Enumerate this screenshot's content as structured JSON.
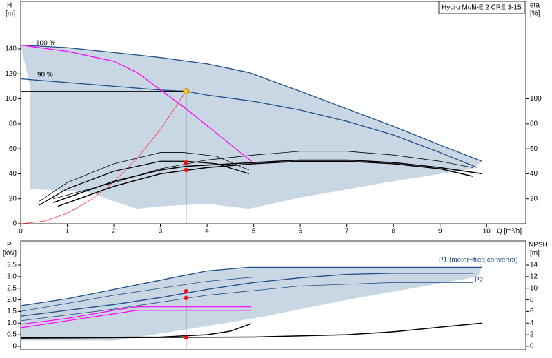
{
  "chart_data": [
    {
      "type": "line",
      "title": "Hydro Multi-E 2 CRE 3-15",
      "y_label": "H",
      "y_unit": "[m]",
      "y2_label": "eta",
      "y2_unit": "[%]",
      "x_label": "Q [m³/h]",
      "annotations": [
        "100 %",
        "90 %"
      ],
      "xlim": [
        0,
        10.84
      ],
      "xticks": [
        0,
        1,
        2,
        3,
        4,
        5,
        6,
        7,
        8,
        9,
        10
      ],
      "ylim": [
        0,
        178
      ],
      "yticks": [
        0,
        20,
        40,
        60,
        80,
        100,
        120,
        140
      ],
      "y2lim": [
        0,
        178
      ],
      "y2ticks": [
        20,
        40,
        60,
        80,
        100
      ],
      "regions": [
        {
          "color": "#c8d7e3",
          "x": [
            0,
            1,
            2,
            3,
            4,
            4.9,
            6,
            7,
            8,
            9,
            9.9,
            9.7,
            8,
            6,
            4.9,
            4,
            3,
            2.5,
            2,
            1.5,
            0.2,
            0.2,
            0
          ],
          "values": [
            143,
            141,
            137,
            133,
            128,
            121,
            106,
            92,
            78,
            63,
            50,
            44,
            34,
            21,
            12,
            16,
            14,
            12,
            18,
            25,
            28,
            110,
            143
          ]
        }
      ],
      "series": [
        {
          "color": "#1f4e89",
          "width": 1.3,
          "x": [
            0,
            1,
            2,
            3,
            4,
            4.9,
            6,
            7,
            8,
            9,
            9.9
          ],
          "values": [
            143,
            141,
            137,
            133,
            128,
            121,
            106,
            92,
            78,
            63,
            50
          ]
        },
        {
          "color": "#1f4e89",
          "width": 1.3,
          "x": [
            0,
            1,
            2,
            3,
            3.55,
            4,
            5,
            6,
            7,
            8,
            9,
            9.8
          ],
          "values": [
            116,
            113,
            110,
            107,
            106,
            103,
            98,
            91,
            82,
            71,
            57,
            45
          ]
        },
        {
          "color": "#000000",
          "width": 1,
          "x": [
            0,
            3.55
          ],
          "values": [
            106,
            106
          ]
        },
        {
          "color": "#ff00ff",
          "width": 1.3,
          "x": [
            0,
            1,
            2,
            2.5,
            3.55,
            4.95
          ],
          "values": [
            143,
            138,
            130,
            121,
            92,
            50
          ]
        },
        {
          "color": "#ff3030",
          "width": 0.8,
          "x": [
            0,
            0.5,
            1,
            1.5,
            2,
            2.5,
            3,
            3.55
          ],
          "values": [
            0,
            2,
            8.4,
            19,
            33.6,
            52.5,
            75.6,
            106
          ]
        },
        {
          "color": "#555555",
          "width": 1,
          "x": [
            3.55,
            3.55
          ],
          "values": [
            0,
            106
          ]
        },
        {
          "color": "#000000",
          "width": 0.8,
          "axis": "y2",
          "x": [
            0.4,
            1,
            2,
            3,
            3.5,
            4.2,
            4.9
          ],
          "values": [
            18,
            33,
            48,
            57,
            57,
            54,
            43
          ]
        },
        {
          "color": "#000000",
          "width": 1.3,
          "axis": "y2",
          "x": [
            0.4,
            1,
            2,
            3,
            3.55,
            4.2,
            4.9
          ],
          "values": [
            15,
            28,
            42,
            50,
            50,
            48,
            40
          ]
        },
        {
          "color": "#000000",
          "width": 0.8,
          "axis": "y2",
          "x": [
            0.7,
            2,
            3,
            4,
            5,
            6,
            7,
            8,
            9,
            9.7
          ],
          "values": [
            20,
            33,
            44,
            51,
            55,
            58,
            58,
            55,
            50,
            45
          ]
        },
        {
          "color": "#000000",
          "width": 1.5,
          "axis": "y2",
          "x": [
            0.7,
            2,
            3,
            3.55,
            5,
            6,
            7,
            8,
            9,
            9.9
          ],
          "values": [
            17,
            34,
            43,
            46,
            49,
            51,
            51,
            49,
            45,
            40
          ]
        },
        {
          "color": "#000000",
          "width": 1.5,
          "axis": "y2",
          "x": [
            0.8,
            2,
            3,
            4,
            5,
            6,
            7,
            8,
            9,
            9.7
          ],
          "values": [
            14,
            30,
            40,
            45,
            48,
            50,
            50,
            48,
            44,
            38
          ]
        }
      ],
      "points": [
        {
          "x": 3.55,
          "y": 106,
          "color": "#ffc020"
        },
        {
          "x": 3.55,
          "y": 49,
          "color": "#ff1010",
          "axis": "y2"
        },
        {
          "x": 3.55,
          "y": 43,
          "color": "#ff1010",
          "axis": "y2"
        }
      ]
    },
    {
      "type": "line",
      "y_label": "P",
      "y_unit": "[kW]",
      "y2_label": "NPSH",
      "y2_unit": "[m]",
      "annotations": [
        "P1 (motor+freq.converter)",
        "P2"
      ],
      "xlim": [
        0,
        10.84
      ],
      "ylim": [
        -0.15,
        4.54
      ],
      "yticks": [
        0,
        0.5,
        {
          "value": 1,
          "label": "1.0"
        },
        1.5,
        {
          "value": 2,
          "label": "2.0"
        },
        2.5,
        {
          "value": 3,
          "label": "3.0"
        },
        3.5
      ],
      "y2lim": [
        -0.6,
        18.16
      ],
      "y2ticks": [
        0,
        2,
        4,
        6,
        8,
        10,
        12,
        14
      ],
      "regions": [
        {
          "color": "#c8d7e3",
          "x": [
            0,
            1,
            2,
            3,
            4,
            4.9,
            9.9,
            9.8,
            7,
            5,
            3,
            2,
            0
          ],
          "values": [
            1.75,
            2.05,
            2.45,
            2.85,
            3.25,
            3.4,
            3.4,
            3.0,
            2.0,
            1.2,
            0.55,
            0.25,
            0.25
          ]
        }
      ],
      "series": [
        {
          "color": "#1f4e89",
          "width": 1.3,
          "x": [
            0,
            1,
            2,
            3,
            4,
            4.9,
            9.9
          ],
          "values": [
            1.75,
            2.05,
            2.45,
            2.85,
            3.25,
            3.4,
            3.4
          ]
        },
        {
          "color": "#1f4e89",
          "width": 0.8,
          "x": [
            0,
            2,
            4,
            5,
            9.9
          ],
          "values": [
            1.5,
            2.2,
            2.8,
            2.98,
            2.98
          ]
        },
        {
          "color": "#1f4e89",
          "width": 1.3,
          "x": [
            0,
            1,
            2,
            3,
            4,
            5,
            6,
            7,
            8,
            9.7
          ],
          "values": [
            1.3,
            1.55,
            1.8,
            2.1,
            2.45,
            2.75,
            2.95,
            3.1,
            3.15,
            3.15
          ]
        },
        {
          "color": "#1f4e89",
          "width": 0.8,
          "x": [
            0,
            2,
            4,
            6,
            8,
            9.7
          ],
          "values": [
            1.1,
            1.6,
            2.2,
            2.6,
            2.75,
            2.75
          ]
        },
        {
          "color": "#ff00ff",
          "width": 1.2,
          "x": [
            0,
            1,
            2,
            2.5,
            4.95
          ],
          "values": [
            0.95,
            1.2,
            1.55,
            1.7,
            1.7
          ]
        },
        {
          "color": "#ff00ff",
          "width": 1.2,
          "x": [
            0,
            2.5,
            4.95
          ],
          "values": [
            0.8,
            1.55,
            1.55
          ]
        },
        {
          "color": "#555555",
          "width": 1,
          "x": [
            3.55,
            3.55
          ],
          "values": [
            -0.15,
            2.37
          ]
        },
        {
          "color": "#000000",
          "width": 1.5,
          "axis": "y2",
          "x": [
            0,
            3,
            4,
            4.5,
            4.95
          ],
          "values": [
            1.5,
            1.6,
            2,
            2.6,
            3.9
          ]
        },
        {
          "color": "#000000",
          "width": 1.5,
          "axis": "y2",
          "x": [
            0,
            5,
            7,
            8,
            9,
            9.9
          ],
          "values": [
            1.4,
            1.6,
            2,
            2.5,
            3.3,
            4
          ]
        }
      ],
      "points": [
        {
          "x": 3.55,
          "y": 2.37,
          "color": "#ff1010"
        },
        {
          "x": 3.55,
          "y": 2.08,
          "color": "#ff1010"
        },
        {
          "x": 3.55,
          "y": 1.5,
          "color": "#ff1010",
          "axis": "y2"
        }
      ]
    }
  ]
}
